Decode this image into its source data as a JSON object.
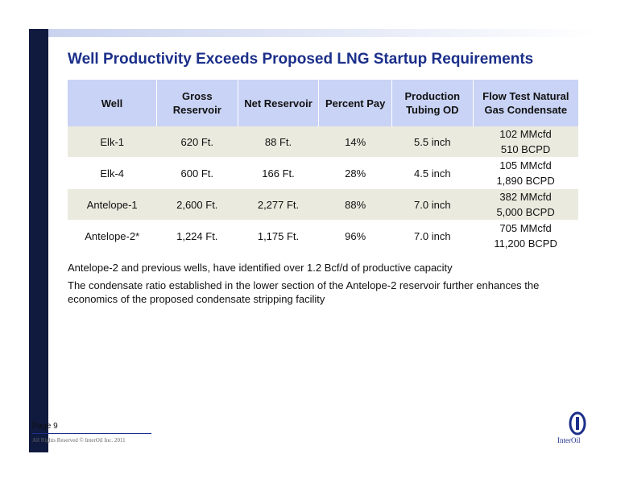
{
  "slide": {
    "title": "Well Productivity Exceeds Proposed LNG Startup Requirements"
  },
  "table": {
    "headers": [
      "Well",
      "Gross Reservoir",
      "Net Reservoir",
      "Percent Pay",
      "Production Tubing OD",
      "Flow Test Natural Gas Condensate"
    ],
    "rows": [
      {
        "well": "Elk-1",
        "gross": "620 Ft.",
        "net": "88 Ft.",
        "pay": "14%",
        "tubing": "5.5 inch",
        "flow_gas": "102 MMcfd",
        "flow_cond": "510 BCPD"
      },
      {
        "well": "Elk-4",
        "gross": "600 Ft.",
        "net": "166 Ft.",
        "pay": "28%",
        "tubing": "4.5 inch",
        "flow_gas": "105 MMcfd",
        "flow_cond": "1,890 BCPD"
      },
      {
        "well": "Antelope-1",
        "gross": "2,600 Ft.",
        "net": "2,277 Ft.",
        "pay": "88%",
        "tubing": "7.0 inch",
        "flow_gas": "382 MMcfd",
        "flow_cond": "5,000 BCPD"
      },
      {
        "well": "Antelope-2*",
        "gross": "1,224 Ft.",
        "net": "1,175 Ft.",
        "pay": "96%",
        "tubing": "7.0 inch",
        "flow_gas": "705 MMcfd",
        "flow_cond": "11,200 BCPD"
      }
    ]
  },
  "notes": [
    "Antelope-2 and previous wells, have identified over 1.2 Bcf/d of productive capacity",
    "The condensate ratio established in the lower section of the Antelope-2 reservoir further enhances the economics of the proposed condensate stripping facility"
  ],
  "footer": {
    "page": "Page 9",
    "copyright": "All Rights Reserved © InterOil Inc. 2011",
    "logo_text": "InterOil"
  },
  "colors": {
    "title": "#1b2f8a",
    "header_bg": "#c9d3f5",
    "row_shade": "#ebeadf",
    "side_bar": "#0f1a3e"
  }
}
